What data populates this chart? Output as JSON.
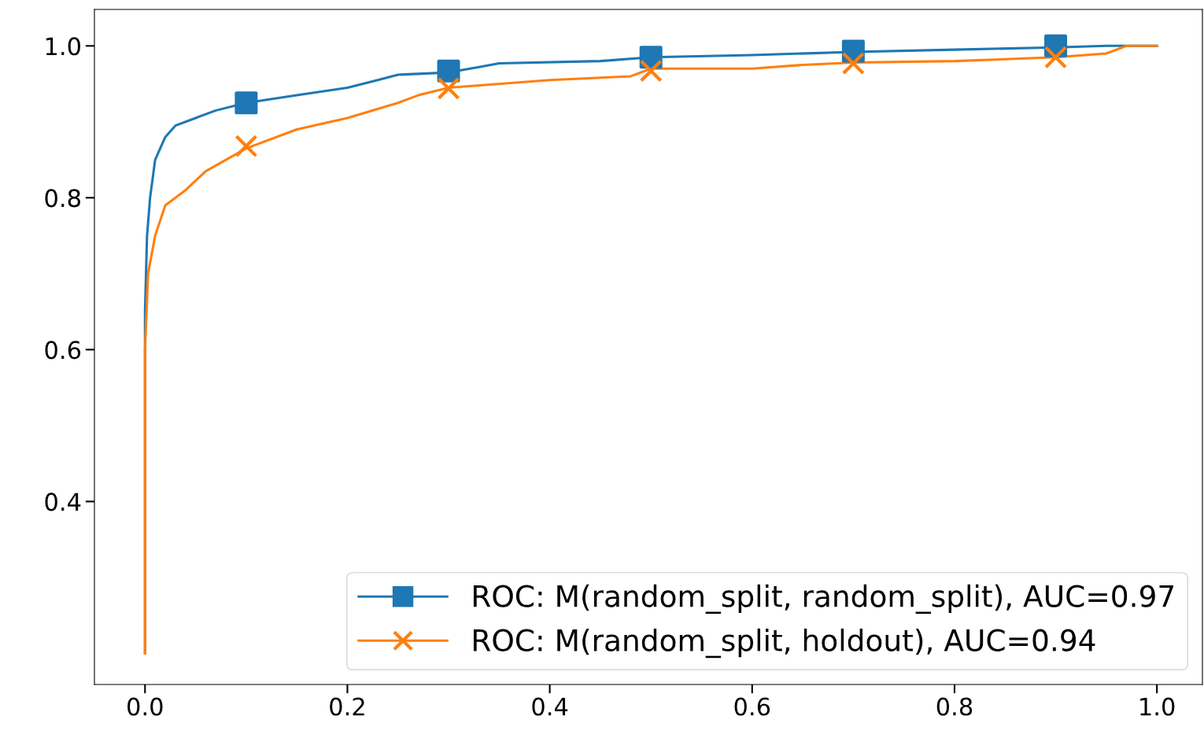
{
  "chart_data": {
    "type": "line",
    "xlim": [
      -0.05,
      1.045
    ],
    "ylim": [
      0.159,
      1.048
    ],
    "xticks": [
      {
        "value": 0,
        "label": "0.0"
      },
      0.2,
      0.4,
      0.6,
      0.8,
      {
        "value": 1,
        "label": "1.0"
      }
    ],
    "yticks": [
      0.4,
      0.6,
      0.8,
      {
        "value": 1,
        "label": "1.0"
      }
    ],
    "grid": false,
    "legend": "bottom right",
    "line_style": "solid",
    "series": [
      {
        "name": "ROC: M(random_split, random_split), AUC=0.97",
        "color": "#1f77b4",
        "x": [
          0,
          0,
          0.002,
          0.005,
          0.01,
          0.02,
          0.03,
          0.05,
          0.07,
          0.1,
          0.15,
          0.2,
          0.23,
          0.25,
          0.3,
          0.33,
          0.35,
          0.45,
          0.5,
          0.6,
          0.7,
          0.8,
          0.9,
          0.95,
          1.0
        ],
        "values": [
          0.2,
          0.65,
          0.75,
          0.8,
          0.85,
          0.88,
          0.895,
          0.905,
          0.915,
          0.925,
          0.935,
          0.945,
          0.955,
          0.962,
          0.965,
          0.972,
          0.977,
          0.98,
          0.985,
          0.988,
          0.992,
          0.995,
          0.998,
          1.0,
          1.0
        ]
      },
      {
        "name": "ROC: M(random_split, holdout), AUC=0.94",
        "color": "#ff7f0e",
        "x": [
          0,
          0,
          0.003,
          0.01,
          0.02,
          0.04,
          0.06,
          0.08,
          0.1,
          0.15,
          0.2,
          0.25,
          0.27,
          0.3,
          0.4,
          0.48,
          0.5,
          0.6,
          0.65,
          0.7,
          0.8,
          0.9,
          0.95,
          0.97,
          1.0
        ],
        "values": [
          0.2,
          0.6,
          0.7,
          0.75,
          0.79,
          0.81,
          0.835,
          0.85,
          0.865,
          0.89,
          0.905,
          0.925,
          0.935,
          0.945,
          0.955,
          0.96,
          0.97,
          0.97,
          0.975,
          0.978,
          0.98,
          0.985,
          0.99,
          1.0,
          1.0
        ]
      },
      {
        "type": "scatter",
        "color": "#1f77b4",
        "marker": "square",
        "x": [
          0.1,
          0.3,
          0.5,
          0.7,
          0.9
        ],
        "values": [
          0.925,
          0.967,
          0.985,
          0.993,
          1.0
        ]
      },
      {
        "type": "scatter",
        "color": "#ff7f0e",
        "marker": "cross",
        "x": [
          0.1,
          0.3,
          0.5,
          0.7,
          0.9
        ],
        "values": [
          0.868,
          0.944,
          0.967,
          0.977,
          0.985
        ]
      }
    ]
  }
}
